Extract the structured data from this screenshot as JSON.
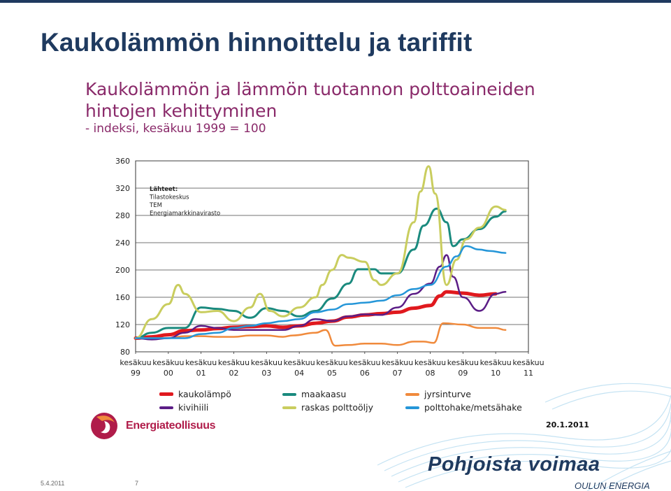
{
  "slide": {
    "title": "Kaukolämmön hinnoittelu ja tariffit",
    "footer_date": "5.4.2011",
    "page_number": "7",
    "brand_name": "Pohjoista voimaa",
    "brand_sub": "OULUN ENERGIA",
    "logo_text": "Energiateollisuus",
    "chart_date": "20.1.2011"
  },
  "colors": {
    "title": "#1f3a5f",
    "chart_title": "#8a2a6a",
    "kaukolampo": "#e0191e",
    "maakaasu": "#1a8a7e",
    "jyrsinturve": "#f08a3c",
    "kivihiili": "#5b1d86",
    "raskas_polttooljy": "#c9cd5e",
    "polttohake": "#2596d8"
  },
  "chart_data": {
    "type": "line",
    "title_lines": [
      "Kaukolämmön ja lämmön tuotannon polttoaineiden",
      "hintojen kehittyminen"
    ],
    "subtitle": "- indeksi, kesäkuu 1999 = 100",
    "ylim": [
      80,
      360
    ],
    "yticks": [
      80,
      120,
      160,
      200,
      240,
      280,
      320,
      360
    ],
    "xlim": [
      1999.5,
      2011.5
    ],
    "xtick_positions": [
      1999.5,
      2000.5,
      2001.5,
      2002.5,
      2003.5,
      2004.5,
      2005.5,
      2006.5,
      2007.5,
      2008.5,
      2009.5,
      2010.5,
      2011.5
    ],
    "xtick_top": [
      "kesäkuu",
      "kesäkuu",
      "kesäkuu",
      "kesäkuu",
      "kesäkuu",
      "kesäkuu",
      "kesäkuu",
      "kesäkuu",
      "kesäkuu",
      "kesäkuu",
      "kesäkuu",
      "kesäkuu",
      "kesäkuu"
    ],
    "xtick_bottom": [
      "99",
      "00",
      "01",
      "02",
      "03",
      "04",
      "05",
      "06",
      "07",
      "08",
      "09",
      "10",
      "11"
    ],
    "grid": "horizontal",
    "sources": [
      "Lähteet:",
      "Tilastokeskus",
      "TEM",
      "Energiamarkkinavirasto"
    ],
    "series": [
      {
        "name": "kaukolämpö",
        "key": "kaukolampo",
        "width": 5,
        "x": [
          1999.5,
          2000,
          2000.5,
          2001,
          2001.5,
          2002,
          2002.5,
          2003,
          2003.5,
          2004,
          2004.5,
          2005,
          2005.5,
          2006,
          2006.5,
          2007,
          2007.5,
          2008,
          2008.5,
          2008.8,
          2009,
          2009.5,
          2010,
          2010.5
        ],
        "y": [
          100,
          102,
          105,
          111,
          112,
          114,
          116,
          117,
          118,
          116,
          118,
          122,
          125,
          131,
          134,
          136,
          138,
          144,
          148,
          162,
          168,
          166,
          163,
          165
        ]
      },
      {
        "name": "maakaasu",
        "key": "maakaasu",
        "width": 3,
        "x": [
          1999.5,
          2000,
          2000.5,
          2001,
          2001.5,
          2002,
          2002.5,
          2003,
          2003.5,
          2004,
          2004.5,
          2005,
          2005.5,
          2006,
          2006.3,
          2006.8,
          2007,
          2007.5,
          2008,
          2008.3,
          2008.7,
          2009,
          2009.2,
          2009.5,
          2010,
          2010.5,
          2010.8
        ],
        "y": [
          100,
          108,
          115,
          115,
          145,
          143,
          140,
          130,
          144,
          140,
          132,
          140,
          158,
          180,
          201,
          201,
          195,
          195,
          230,
          265,
          290,
          270,
          235,
          245,
          260,
          278,
          286
        ]
      },
      {
        "name": "jyrsinturve",
        "key": "jyrsinturve",
        "width": 2.5,
        "x": [
          1999.5,
          2000,
          2000.5,
          2001,
          2001.5,
          2002,
          2002.5,
          2003,
          2003.5,
          2004,
          2004.3,
          2005,
          2005.3,
          2005.6,
          2006,
          2006.5,
          2007,
          2007.5,
          2008,
          2008.3,
          2008.6,
          2008.9,
          2009.5,
          2010,
          2010.5,
          2010.8
        ],
        "y": [
          100,
          100,
          100,
          103,
          103,
          102,
          102,
          104,
          104,
          102,
          104,
          108,
          112,
          89,
          90,
          92,
          92,
          90,
          95,
          95,
          93,
          122,
          120,
          115,
          115,
          112
        ]
      },
      {
        "name": "kivihiili",
        "key": "kivihiili",
        "width": 2.5,
        "x": [
          1999.5,
          2000,
          2000.5,
          2001,
          2001.5,
          2002,
          2002.5,
          2003,
          2003.5,
          2004,
          2004.5,
          2005,
          2005.5,
          2006,
          2006.5,
          2007,
          2007.5,
          2008,
          2008.5,
          2008.8,
          2009,
          2009.2,
          2009.5,
          2010,
          2010.5,
          2010.8
        ],
        "y": [
          100,
          98,
          100,
          108,
          118,
          115,
          112,
          112,
          112,
          112,
          118,
          128,
          125,
          132,
          135,
          134,
          145,
          165,
          180,
          205,
          222,
          190,
          160,
          140,
          165,
          168
        ]
      },
      {
        "name": "raskas polttoöljy",
        "key": "raskas_polttooljy",
        "width": 3,
        "x": [
          1999.5,
          2000,
          2000.5,
          2000.8,
          2001,
          2001.5,
          2002,
          2002.5,
          2003,
          2003.3,
          2003.6,
          2004,
          2004.5,
          2005,
          2005.2,
          2005.5,
          2005.8,
          2006,
          2006.5,
          2006.8,
          2007,
          2007.5,
          2008,
          2008.2,
          2008.45,
          2008.65,
          2009,
          2009.3,
          2009.6,
          2010,
          2010.5,
          2010.8
        ],
        "y": [
          100,
          128,
          150,
          178,
          165,
          138,
          140,
          125,
          145,
          165,
          140,
          132,
          145,
          160,
          178,
          200,
          222,
          218,
          212,
          185,
          178,
          195,
          270,
          315,
          352,
          312,
          178,
          215,
          245,
          262,
          293,
          288
        ]
      },
      {
        "name": "polttohake/metsähake",
        "key": "polttohake",
        "width": 2.5,
        "x": [
          1999.5,
          2000,
          2000.5,
          2001,
          2001.5,
          2002,
          2002.5,
          2003,
          2003.5,
          2004,
          2004.5,
          2005,
          2005.5,
          2006,
          2006.5,
          2007,
          2007.5,
          2008,
          2008.5,
          2009,
          2009.3,
          2009.6,
          2010,
          2010.3,
          2010.8
        ],
        "y": [
          100,
          100,
          100,
          100,
          106,
          108,
          115,
          118,
          122,
          125,
          128,
          138,
          142,
          150,
          152,
          155,
          163,
          172,
          178,
          205,
          220,
          235,
          230,
          228,
          225
        ]
      }
    ]
  },
  "legend": {
    "items": [
      {
        "label": "kaukolämpö",
        "key": "kaukolampo"
      },
      {
        "label": "maakaasu",
        "key": "maakaasu"
      },
      {
        "label": "jyrsinturve",
        "key": "jyrsinturve"
      },
      {
        "label": "kivihiili",
        "key": "kivihiili"
      },
      {
        "label": "raskas polttoöljy",
        "key": "raskas_polttooljy"
      },
      {
        "label": "polttohake/metsähake",
        "key": "polttohake"
      }
    ]
  }
}
